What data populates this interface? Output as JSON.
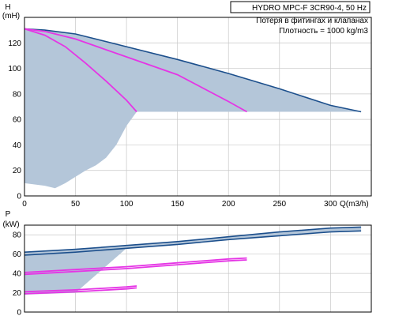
{
  "chart_data": [
    {
      "type": "line",
      "title": "HYDRO MPC-F 3CR90-4, 50 Hz",
      "annotations": [
        "Потеря в фитингах и клапанах",
        "Плотность = 1000 kg/m3"
      ],
      "ylabel": "H",
      "yunit": "(mH)",
      "xlabel": "Q(m3/h)",
      "xlim": [
        0,
        340
      ],
      "ylim": [
        0,
        140
      ],
      "xticks": [
        0,
        50,
        100,
        150,
        200,
        250,
        300
      ],
      "yticks": [
        0,
        20,
        40,
        60,
        80,
        100,
        120
      ],
      "grid": true,
      "colors": {
        "total": "#1c4f8c",
        "partial": "#e535e5",
        "area": "#b4c6d9"
      },
      "series": [
        {
          "role": "total",
          "x": [
            0,
            20,
            50,
            100,
            150,
            200,
            250,
            300,
            330
          ],
          "y": [
            131,
            130,
            127,
            117,
            107,
            96,
            84,
            71,
            66
          ]
        },
        {
          "role": "partial",
          "x": [
            0,
            20,
            50,
            100,
            150,
            200,
            218
          ],
          "y": [
            131,
            129,
            123,
            109,
            95,
            74,
            66
          ]
        },
        {
          "role": "partial",
          "x": [
            0,
            20,
            40,
            60,
            80,
            100,
            110
          ],
          "y": [
            131,
            126,
            117,
            104,
            90,
            75,
            66
          ]
        }
      ],
      "operating_area": {
        "x": [
          0,
          20,
          50,
          100,
          150,
          200,
          250,
          300,
          330,
          300,
          250,
          200,
          150,
          110,
          100,
          90,
          80,
          70,
          60,
          50,
          40,
          30,
          20,
          10,
          0
        ],
        "y": [
          131,
          130,
          127,
          117,
          107,
          96,
          84,
          71,
          66,
          66,
          66,
          66,
          66,
          66,
          55,
          40,
          30,
          24,
          20,
          15,
          10,
          6,
          8,
          9,
          10
        ]
      }
    },
    {
      "type": "line",
      "ylabel": "P",
      "yunit": "(kW)",
      "xlim": [
        0,
        340
      ],
      "ylim": [
        0,
        90
      ],
      "yticks": [
        0,
        20,
        40,
        60,
        80
      ],
      "grid": true,
      "colors": {
        "total": "#1c4f8c",
        "partial": "#e535e5",
        "area": "#b4c6d9"
      },
      "series": [
        {
          "role": "total",
          "x": [
            0,
            50,
            100,
            150,
            200,
            250,
            300,
            330
          ],
          "y": [
            62,
            65,
            69,
            73,
            78,
            83,
            87,
            88
          ]
        },
        {
          "role": "total",
          "x": [
            0,
            50,
            100,
            150,
            200,
            250,
            300,
            330
          ],
          "y": [
            59,
            62,
            66,
            70,
            75,
            79,
            83,
            84
          ]
        },
        {
          "role": "partial",
          "x": [
            0,
            50,
            100,
            150,
            200,
            218
          ],
          "y": [
            41,
            44,
            47,
            51,
            55,
            56
          ]
        },
        {
          "role": "partial",
          "x": [
            0,
            50,
            100,
            150,
            200,
            218
          ],
          "y": [
            39,
            42,
            45,
            49,
            53,
            54
          ]
        },
        {
          "role": "partial",
          "x": [
            0,
            50,
            100,
            110
          ],
          "y": [
            21,
            23,
            26,
            27
          ]
        },
        {
          "role": "partial",
          "x": [
            0,
            50,
            100,
            110
          ],
          "y": [
            19,
            21,
            24,
            25
          ]
        }
      ],
      "operating_area": {
        "x": [
          0,
          50,
          100,
          150,
          200,
          250,
          300,
          330,
          330,
          300,
          250,
          200,
          150,
          100,
          50,
          0
        ],
        "y": [
          62,
          65,
          69,
          73,
          78,
          83,
          87,
          88,
          84,
          83,
          79,
          75,
          70,
          66,
          20,
          18
        ]
      }
    }
  ]
}
